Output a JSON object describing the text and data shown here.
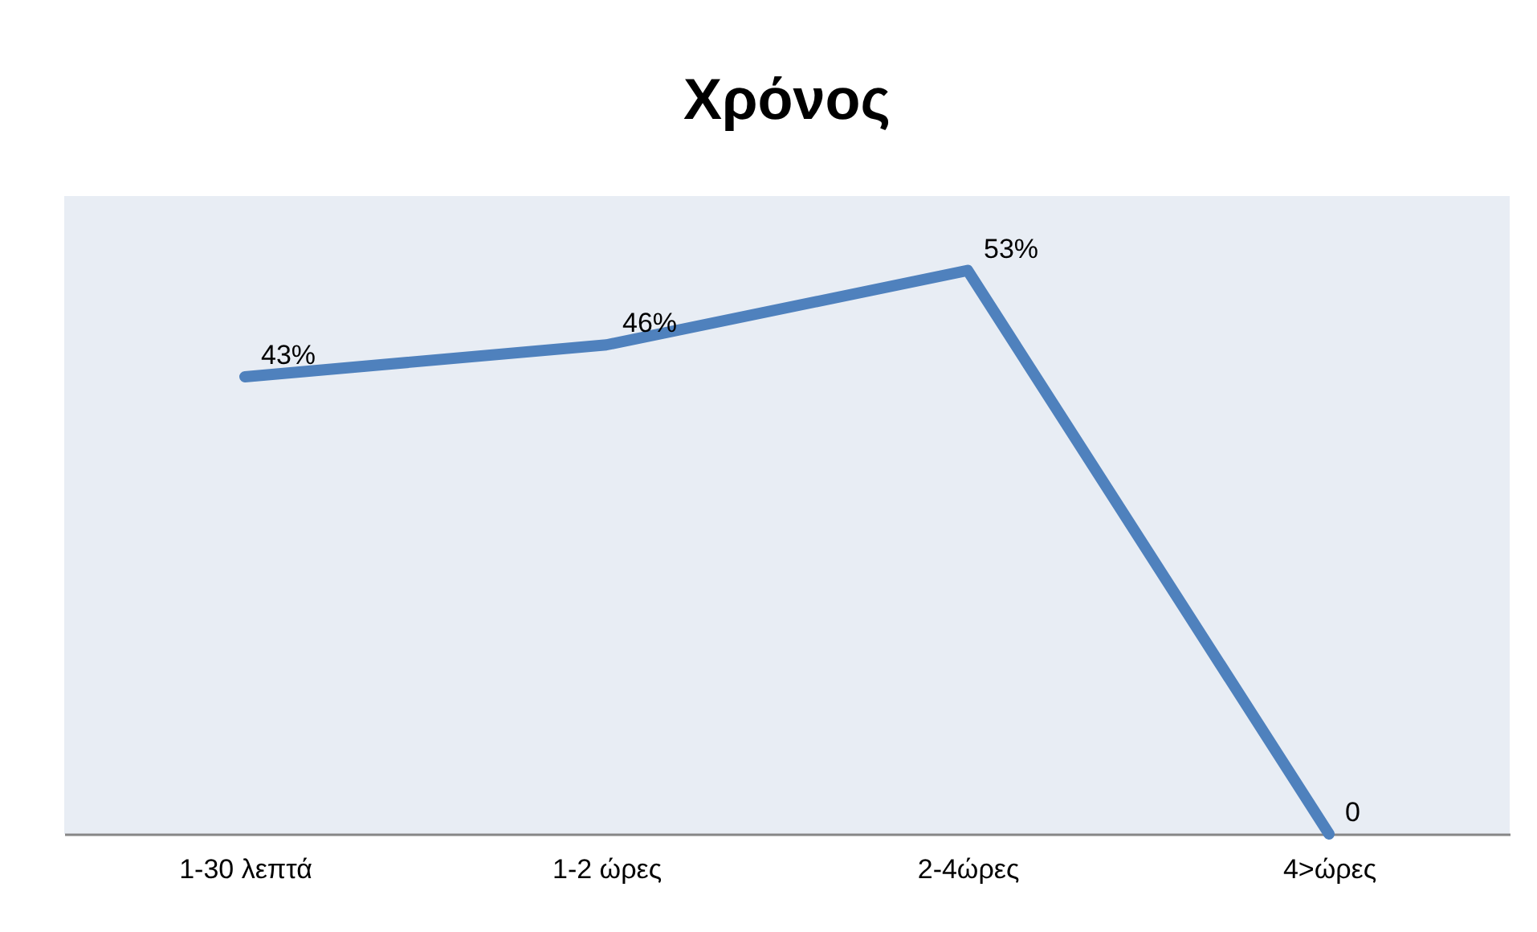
{
  "chart_data": {
    "type": "line",
    "title": "Χρόνος",
    "categories": [
      "1-30 λεπτά",
      "1-2 ώρες",
      "2-4ώρες",
      "4>ώρες"
    ],
    "series": [
      {
        "color": "#4f81bd",
        "values": [
          43,
          46,
          53,
          0
        ],
        "value_labels": [
          "43%",
          "46%",
          "53%",
          "0"
        ]
      }
    ],
    "ylim": [
      0,
      60
    ],
    "tick_labels": "x",
    "marker": "none",
    "line_style": "solid"
  }
}
